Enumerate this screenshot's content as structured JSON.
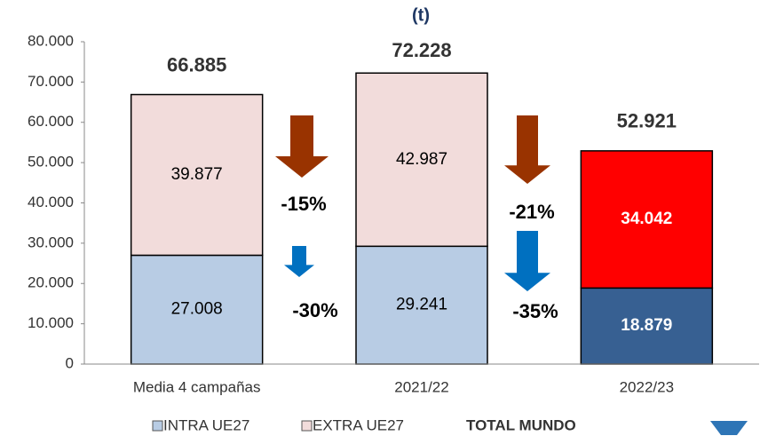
{
  "chart_data": {
    "type": "stacked_bar",
    "title": "(t)",
    "categories": [
      "Media 4 campañas",
      "2021/22",
      "2022/23"
    ],
    "series": [
      {
        "name": "INTRA UE27",
        "color": "#b8cce4",
        "colors": [
          "#b8cce4",
          "#b8cce4",
          "#376092"
        ],
        "label_colors": [
          "#000000",
          "#000000",
          "#ffffff"
        ],
        "values": [
          27008,
          29241,
          18879
        ],
        "value_labels": [
          "27.008",
          "29.241",
          "18.879"
        ]
      },
      {
        "name": "EXTRA UE27",
        "color": "#f2dcdb",
        "colors": [
          "#f2dcdb",
          "#f2dcdb",
          "#ff0000"
        ],
        "label_colors": [
          "#000000",
          "#000000",
          "#ffffff"
        ],
        "values": [
          39877,
          42987,
          34042
        ],
        "value_labels": [
          "39.877",
          "42.987",
          "34.042"
        ]
      }
    ],
    "totals": {
      "name": "TOTAL MUNDO",
      "values": [
        66885,
        72228,
        52921
      ],
      "value_labels": [
        "66.885",
        "72.228",
        "52.921"
      ]
    },
    "annotations": [
      {
        "text": "-15%",
        "color": "#993300"
      },
      {
        "text": "-30%",
        "color": "#0070c0"
      },
      {
        "text": "-21%",
        "color": "#993300"
      },
      {
        "text": "-35%",
        "color": "#0070c0"
      }
    ],
    "ylim": [
      0,
      80000
    ],
    "yticks": [
      0,
      {
        "value": 10000,
        "label": "10.000"
      },
      {
        "value": 20000,
        "label": "20.000"
      },
      {
        "value": 30000,
        "label": "30.000"
      },
      {
        "value": 40000,
        "label": "40.000"
      },
      {
        "value": 50000,
        "label": "50.000"
      },
      {
        "value": 60000,
        "label": "60.000"
      },
      {
        "value": 70000,
        "label": "70.000"
      },
      {
        "value": 80000,
        "label": "80.000"
      }
    ]
  }
}
